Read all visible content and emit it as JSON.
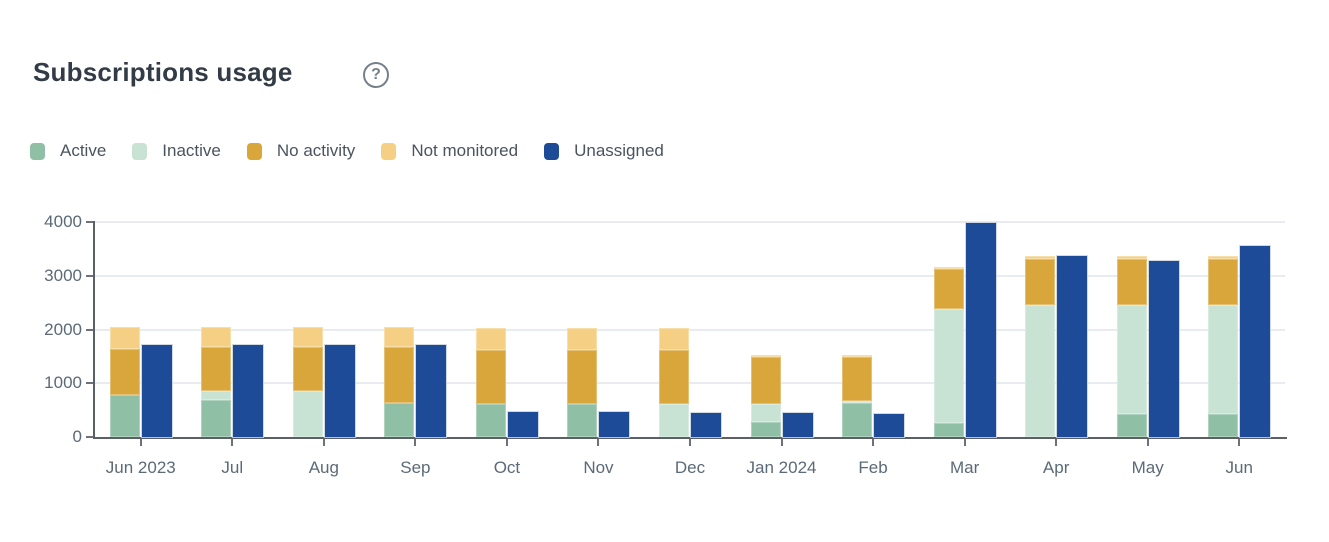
{
  "header": {
    "title": "Subscriptions usage",
    "help_glyph": "?"
  },
  "axes": {
    "y_tick_labels": [
      "0",
      "1000",
      "2000",
      "3000",
      "4000"
    ]
  },
  "chart_data": {
    "type": "bar",
    "stacked": true,
    "title": "Subscriptions usage",
    "xlabel": "",
    "ylabel": "",
    "ylim": [
      0,
      4000
    ],
    "yticks": [
      0,
      1000,
      2000,
      3000,
      4000
    ],
    "grid": true,
    "legend_position": "top-left",
    "categories": [
      "Jun 2023",
      "Jul",
      "Aug",
      "Sep",
      "Oct",
      "Nov",
      "Dec",
      "Jan 2024",
      "Feb",
      "Mar",
      "Apr",
      "May",
      "Jun"
    ],
    "series": [
      {
        "name": "Active",
        "color": "#8fc0a5",
        "stack": "usage",
        "values": [
          780,
          690,
          0,
          640,
          610,
          620,
          0,
          280,
          640,
          260,
          0,
          430,
          430
        ]
      },
      {
        "name": "Inactive",
        "color": "#c8e3d3",
        "stack": "usage",
        "values": [
          0,
          170,
          860,
          0,
          0,
          0,
          620,
          330,
          30,
          2120,
          2450,
          2020,
          2020
        ]
      },
      {
        "name": "No activity",
        "color": "#d9a63c",
        "stack": "usage",
        "values": [
          860,
          810,
          810,
          1040,
          1010,
          1000,
          1000,
          870,
          810,
          740,
          860,
          860,
          860
        ]
      },
      {
        "name": "Not monitored",
        "color": "#f5d084",
        "stack": "usage",
        "values": [
          400,
          370,
          370,
          370,
          400,
          400,
          400,
          40,
          40,
          50,
          50,
          50,
          50
        ]
      },
      {
        "name": "Unassigned",
        "color": "#1d4b97",
        "stack": "unassigned",
        "values": [
          1720,
          1720,
          1720,
          1710,
          460,
          460,
          440,
          440,
          430,
          3990,
          3370,
          3270,
          3560
        ]
      }
    ]
  }
}
